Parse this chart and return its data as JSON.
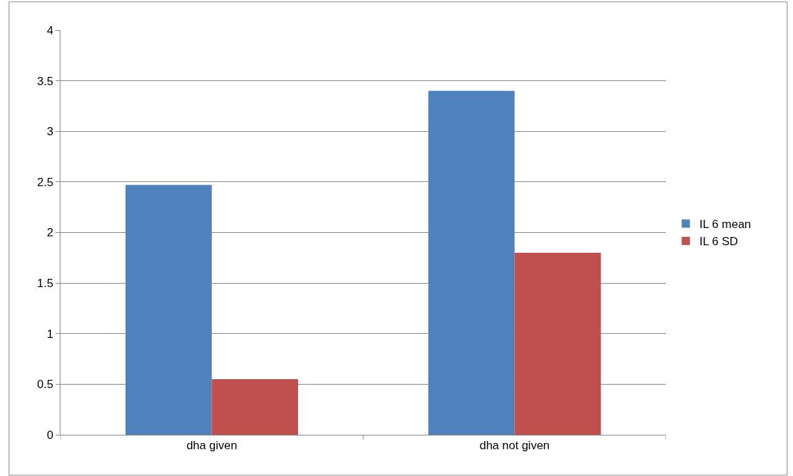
{
  "chart_data": {
    "type": "bar",
    "categories": [
      "dha given",
      "dha not given"
    ],
    "series": [
      {
        "name": "IL 6 mean",
        "color": "#4f81bd",
        "values": [
          2.47,
          3.4
        ]
      },
      {
        "name": "IL 6 SD",
        "color": "#c0504d",
        "values": [
          0.55,
          1.8
        ]
      }
    ],
    "ylim": [
      0,
      4
    ],
    "yticks": [
      0,
      0.5,
      1,
      1.5,
      2,
      2.5,
      3,
      3.5,
      4
    ],
    "grid": "y",
    "legend": "right"
  }
}
